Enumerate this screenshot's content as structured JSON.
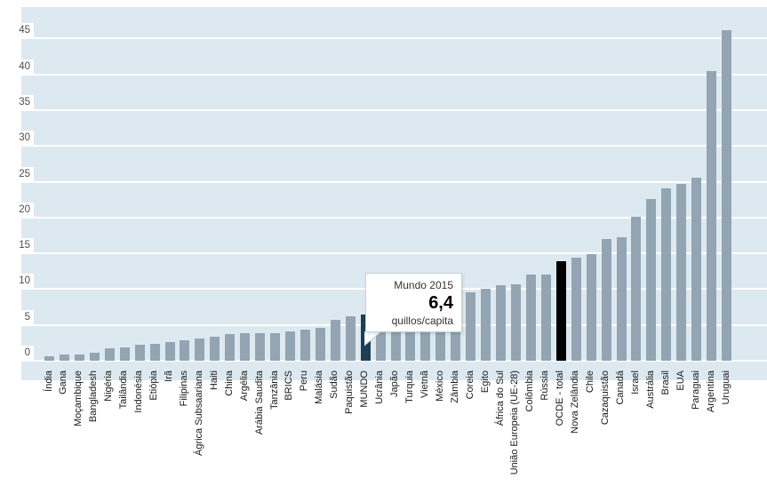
{
  "chart_data": {
    "type": "bar",
    "title": "",
    "xlabel": "",
    "ylabel": "",
    "unit": "quillos/capita",
    "ylim": [
      0,
      49.5
    ],
    "yticks": [
      0,
      5,
      10,
      15,
      20,
      25,
      30,
      35,
      40,
      45
    ],
    "grid": "horizontal-white-on-lightblue",
    "legend_position": "none",
    "categories": [
      "Índia",
      "Gana",
      "Moçambique",
      "Bangladesh",
      "Nigéria",
      "Tailândia",
      "Indonésia",
      "Etiópia",
      "Irã",
      "Filipinas",
      "Ágrica Subsaariana",
      "Haiti",
      "China",
      "Argélia",
      "Arábia Saudita",
      "Tanzânia",
      "BRICS",
      "Peru",
      "Malásia",
      "Sudão",
      "Paquistão",
      "MUNDO",
      "Ucrânia",
      "Japão",
      "Turquia",
      "Vietnã",
      "México",
      "Zâmbia",
      "Coreia",
      "Egito",
      "África do Sul",
      "União Europeia (UE-28)",
      "Colômbia",
      "Rússia",
      "OCDE - total",
      "Nova Zelândia",
      "Chile",
      "Cazaquistão",
      "Canadá",
      "Israel",
      "Austrália",
      "Brasil",
      "EUA",
      "Paraguai",
      "Argentina",
      "Uruguai"
    ],
    "values": [
      0.6,
      0.9,
      0.9,
      1.1,
      1.7,
      1.9,
      2.2,
      2.4,
      2.6,
      2.8,
      3.1,
      3.3,
      3.7,
      3.8,
      3.8,
      3.9,
      4.1,
      4.3,
      4.6,
      5.7,
      6.2,
      6.4,
      6.6,
      7.0,
      7.4,
      7.8,
      8.2,
      8.8,
      9.5,
      10.0,
      10.6,
      10.7,
      12.0,
      12.0,
      13.9,
      14.4,
      14.9,
      17.0,
      17.3,
      20.1,
      22.6,
      24.1,
      24.7,
      25.6,
      40.4,
      46.2
    ],
    "highlight_colors": {
      "MUNDO": "#1d3d53",
      "OCDE - total": "#000000"
    }
  },
  "tooltip": {
    "title": "Mundo 2015",
    "value": "6,4",
    "unit": "quillos/capita"
  },
  "colors": {
    "plot_background": "#dde9f0",
    "bar_default": "#93a5b3",
    "bar_world": "#1d3d53",
    "bar_ocde": "#000000",
    "gridline": "#ffffff",
    "ytick_text": "#4d4d4d",
    "xlabel_text": "#1a1a1a",
    "tooltip_border": "#c5d0d8",
    "tooltip_background": "#ffffff"
  }
}
